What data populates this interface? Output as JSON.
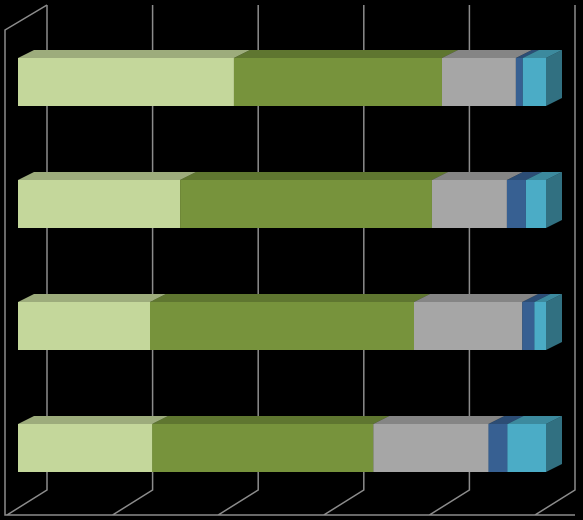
{
  "chart_data": {
    "type": "bar3d-stacked-horizontal",
    "categories": [
      null,
      null,
      null,
      null
    ],
    "series": [
      {
        "color": "#c4d79b",
        "values": [
          40.9,
          30.7,
          25.0,
          25.4
        ]
      },
      {
        "color": "#77933c",
        "values": [
          39.4,
          47.7,
          50.0,
          41.9
        ]
      },
      {
        "color": "#a6a6a6",
        "values": [
          14.0,
          14.2,
          20.5,
          21.8
        ]
      },
      {
        "color": "#376092",
        "values": [
          1.3,
          3.6,
          2.3,
          3.6
        ]
      },
      {
        "color": "#4bacc6",
        "values": [
          4.4,
          3.8,
          2.2,
          7.3
        ]
      }
    ],
    "xlim": [
      0,
      100
    ],
    "xticks": [
      0,
      20,
      40,
      60,
      80,
      100
    ],
    "grid": true
  }
}
